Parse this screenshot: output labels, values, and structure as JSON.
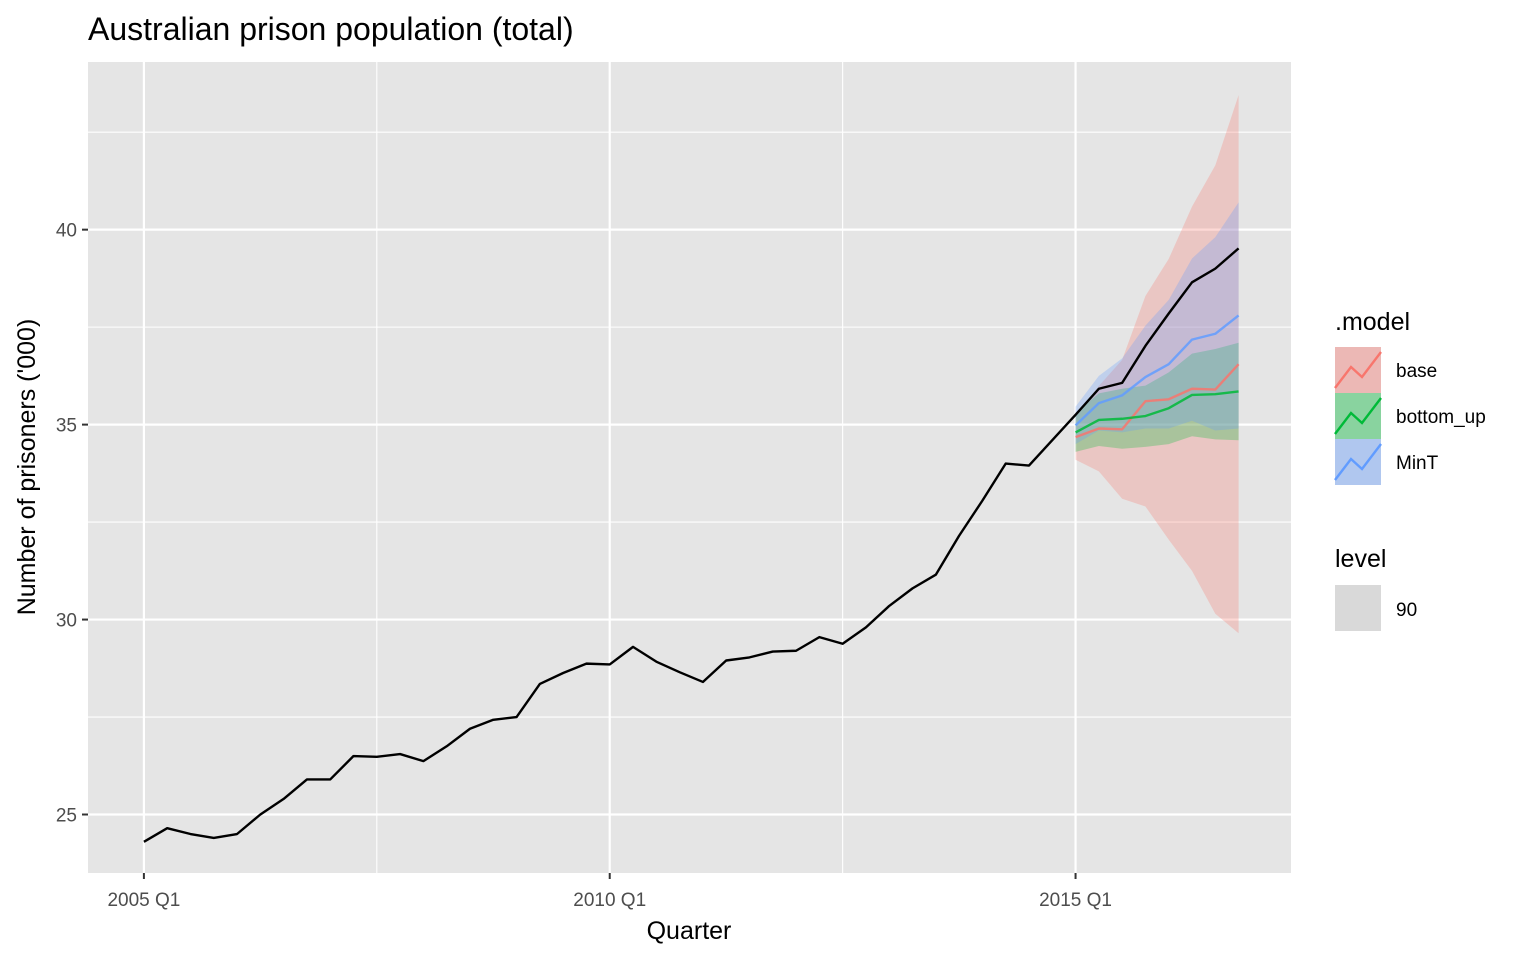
{
  "chart_data": {
    "type": "line",
    "title": "Australian prison population (total)",
    "xlabel": "Quarter",
    "ylabel": "Number of prisoners ('000)",
    "x_ticks": [
      {
        "label": "2005 Q1",
        "t": 0
      },
      {
        "label": "2010 Q1",
        "t": 20
      },
      {
        "label": "2015 Q1",
        "t": 40
      }
    ],
    "y_ticks": [
      25,
      30,
      35,
      40
    ],
    "xlim": [
      -2.4,
      49.25
    ],
    "ylim": [
      23.5,
      44.3
    ],
    "grid": true,
    "colors": {
      "panel": "#e5e5e5",
      "grid": "#ffffff",
      "actual": "#000000",
      "base": "#f8766d",
      "bottom_up": "#00ba38",
      "MinT": "#619cff",
      "level_key": "#d9d9d9"
    },
    "actual": {
      "name": "",
      "x": [
        "2005 Q1",
        "2005 Q2",
        "2005 Q3",
        "2005 Q4",
        "2006 Q1",
        "2006 Q2",
        "2006 Q3",
        "2006 Q4",
        "2007 Q1",
        "2007 Q2",
        "2007 Q3",
        "2007 Q4",
        "2008 Q1",
        "2008 Q2",
        "2008 Q3",
        "2008 Q4",
        "2009 Q1",
        "2009 Q2",
        "2009 Q3",
        "2009 Q4",
        "2010 Q1",
        "2010 Q2",
        "2010 Q3",
        "2010 Q4",
        "2011 Q1",
        "2011 Q2",
        "2011 Q3",
        "2011 Q4",
        "2012 Q1",
        "2012 Q2",
        "2012 Q3",
        "2012 Q4",
        "2013 Q1",
        "2013 Q2",
        "2013 Q3",
        "2013 Q4",
        "2014 Q1",
        "2014 Q2",
        "2014 Q3",
        "2014 Q4",
        "2015 Q1",
        "2015 Q2",
        "2015 Q3",
        "2015 Q4",
        "2016 Q1",
        "2016 Q2",
        "2016 Q3",
        "2016 Q4"
      ],
      "t": [
        0,
        1,
        2,
        3,
        4,
        5,
        6,
        7,
        8,
        9,
        10,
        11,
        12,
        13,
        14,
        15,
        16,
        17,
        18,
        19,
        20,
        21,
        22,
        23,
        24,
        25,
        26,
        27,
        28,
        29,
        30,
        31,
        32,
        33,
        34,
        35,
        36,
        37,
        38,
        39,
        40,
        41,
        42,
        43,
        44,
        45,
        46,
        47
      ],
      "y": [
        24.3,
        24.65,
        24.5,
        24.4,
        24.5,
        25.0,
        25.4,
        25.9,
        25.9,
        26.5,
        26.48,
        26.55,
        26.37,
        26.75,
        27.2,
        27.43,
        27.5,
        28.35,
        28.63,
        28.87,
        28.85,
        29.3,
        28.92,
        28.65,
        28.4,
        28.95,
        29.03,
        29.18,
        29.2,
        29.55,
        29.38,
        29.8,
        30.35,
        30.8,
        31.15,
        32.15,
        33.05,
        34.0,
        33.95,
        34.6,
        35.25,
        35.92,
        36.07,
        37.02,
        37.85,
        38.65,
        39.0,
        39.52
      ]
    },
    "series": [
      {
        "name": "base",
        "t": [
          40,
          41,
          42,
          43,
          44,
          45,
          46,
          47
        ],
        "mean": [
          34.68,
          34.9,
          34.88,
          35.6,
          35.65,
          35.92,
          35.9,
          36.55
        ],
        "lower": [
          34.1,
          33.8,
          33.1,
          32.9,
          32.05,
          31.25,
          30.15,
          29.65
        ],
        "upper": [
          35.25,
          35.99,
          36.66,
          38.3,
          39.25,
          40.59,
          41.65,
          43.45
        ]
      },
      {
        "name": "bottom_up",
        "t": [
          40,
          41,
          42,
          43,
          44,
          45,
          46,
          47
        ],
        "mean": [
          34.8,
          35.12,
          35.15,
          35.22,
          35.42,
          35.76,
          35.78,
          35.85
        ],
        "lower": [
          34.3,
          34.45,
          34.38,
          34.43,
          34.5,
          34.7,
          34.62,
          34.6
        ],
        "upper": [
          35.3,
          35.8,
          35.92,
          36.0,
          36.34,
          36.82,
          36.94,
          37.1
        ]
      },
      {
        "name": "MinT",
        "t": [
          40,
          41,
          42,
          43,
          44,
          45,
          46,
          47
        ],
        "mean": [
          34.98,
          35.55,
          35.75,
          36.22,
          36.55,
          37.18,
          37.33,
          37.8
        ],
        "lower": [
          34.5,
          34.85,
          34.8,
          34.9,
          34.9,
          35.1,
          34.85,
          34.9
        ],
        "upper": [
          35.46,
          36.25,
          36.7,
          37.54,
          38.2,
          39.26,
          39.81,
          40.7
        ]
      }
    ],
    "legend": {
      "model_title": ".model",
      "model_items": [
        "base",
        "bottom_up",
        "MinT"
      ],
      "level_title": "level",
      "level_items": [
        "90"
      ],
      "placement": "right"
    }
  }
}
